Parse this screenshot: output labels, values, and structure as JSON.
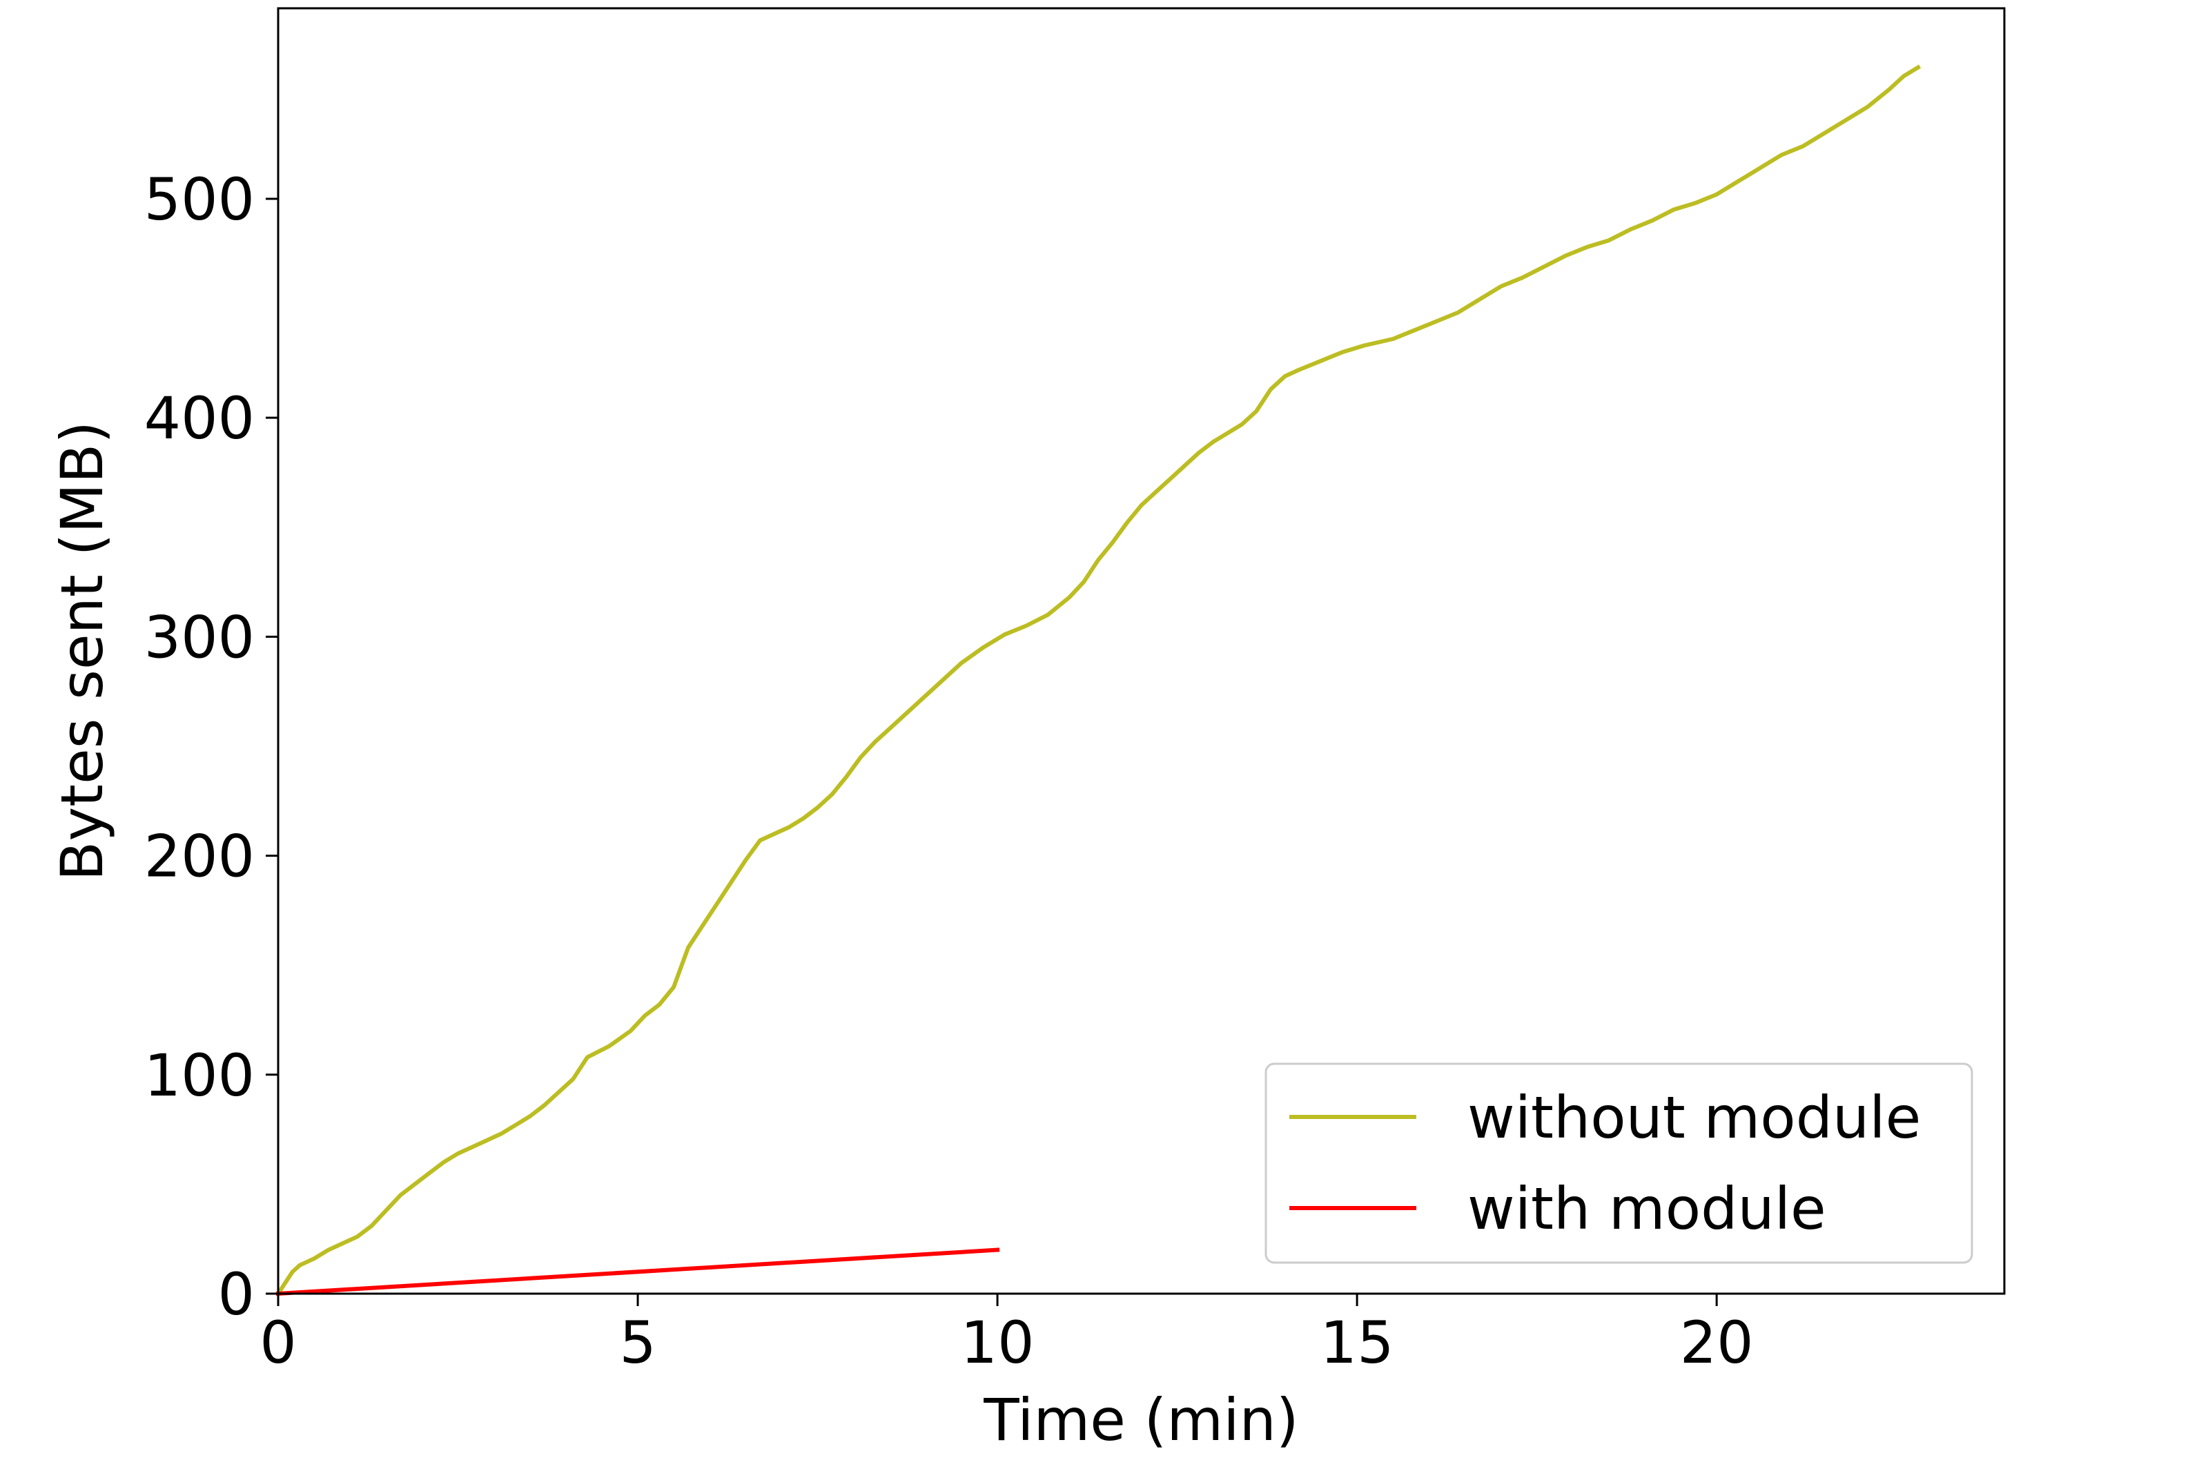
{
  "chart_data": {
    "type": "line",
    "title": "",
    "xlabel": "Time (min)",
    "ylabel": "Bytes sent (MB)",
    "xlim": [
      0,
      24
    ],
    "ylim": [
      0,
      587
    ],
    "xticks": [
      0,
      5,
      10,
      15,
      20
    ],
    "yticks": [
      0,
      100,
      200,
      300,
      400,
      500
    ],
    "grid": false,
    "legend_position": "lower-right",
    "series": [
      {
        "name": "without module",
        "color": "#bcbd22",
        "points": [
          [
            0.0,
            0
          ],
          [
            0.1,
            5
          ],
          [
            0.2,
            10
          ],
          [
            0.3,
            13
          ],
          [
            0.5,
            16
          ],
          [
            0.7,
            20
          ],
          [
            0.9,
            23
          ],
          [
            1.1,
            26
          ],
          [
            1.3,
            31
          ],
          [
            1.5,
            38
          ],
          [
            1.7,
            45
          ],
          [
            1.9,
            50
          ],
          [
            2.1,
            55
          ],
          [
            2.3,
            60
          ],
          [
            2.5,
            64
          ],
          [
            2.7,
            67
          ],
          [
            2.9,
            70
          ],
          [
            3.1,
            73
          ],
          [
            3.3,
            77
          ],
          [
            3.5,
            81
          ],
          [
            3.7,
            86
          ],
          [
            3.9,
            92
          ],
          [
            4.1,
            98
          ],
          [
            4.3,
            108
          ],
          [
            4.6,
            113
          ],
          [
            4.9,
            120
          ],
          [
            5.1,
            127
          ],
          [
            5.3,
            132
          ],
          [
            5.5,
            140
          ],
          [
            5.7,
            158
          ],
          [
            5.9,
            168
          ],
          [
            6.1,
            178
          ],
          [
            6.3,
            188
          ],
          [
            6.5,
            198
          ],
          [
            6.7,
            207
          ],
          [
            6.9,
            210
          ],
          [
            7.1,
            213
          ],
          [
            7.3,
            217
          ],
          [
            7.5,
            222
          ],
          [
            7.7,
            228
          ],
          [
            7.9,
            236
          ],
          [
            8.1,
            245
          ],
          [
            8.3,
            252
          ],
          [
            8.5,
            258
          ],
          [
            8.7,
            264
          ],
          [
            8.9,
            270
          ],
          [
            9.1,
            276
          ],
          [
            9.3,
            282
          ],
          [
            9.5,
            288
          ],
          [
            9.8,
            295
          ],
          [
            10.1,
            301
          ],
          [
            10.4,
            305
          ],
          [
            10.7,
            310
          ],
          [
            11.0,
            318
          ],
          [
            11.2,
            325
          ],
          [
            11.4,
            335
          ],
          [
            11.6,
            343
          ],
          [
            11.8,
            352
          ],
          [
            12.0,
            360
          ],
          [
            12.2,
            366
          ],
          [
            12.4,
            372
          ],
          [
            12.6,
            378
          ],
          [
            12.8,
            384
          ],
          [
            13.0,
            389
          ],
          [
            13.2,
            393
          ],
          [
            13.4,
            397
          ],
          [
            13.6,
            403
          ],
          [
            13.8,
            413
          ],
          [
            14.0,
            419
          ],
          [
            14.2,
            422
          ],
          [
            14.5,
            426
          ],
          [
            14.8,
            430
          ],
          [
            15.1,
            433
          ],
          [
            15.5,
            436
          ],
          [
            15.8,
            440
          ],
          [
            16.1,
            444
          ],
          [
            16.4,
            448
          ],
          [
            16.7,
            454
          ],
          [
            17.0,
            460
          ],
          [
            17.3,
            464
          ],
          [
            17.6,
            469
          ],
          [
            17.9,
            474
          ],
          [
            18.2,
            478
          ],
          [
            18.5,
            481
          ],
          [
            18.8,
            486
          ],
          [
            19.1,
            490
          ],
          [
            19.4,
            495
          ],
          [
            19.7,
            498
          ],
          [
            20.0,
            502
          ],
          [
            20.3,
            508
          ],
          [
            20.6,
            514
          ],
          [
            20.9,
            520
          ],
          [
            21.2,
            524
          ],
          [
            21.5,
            530
          ],
          [
            21.8,
            536
          ],
          [
            22.1,
            542
          ],
          [
            22.4,
            550
          ],
          [
            22.6,
            556
          ],
          [
            22.8,
            560
          ]
        ]
      },
      {
        "name": "with module",
        "color": "#ff0000",
        "points": [
          [
            0,
            0
          ],
          [
            10,
            20
          ]
        ]
      }
    ]
  }
}
